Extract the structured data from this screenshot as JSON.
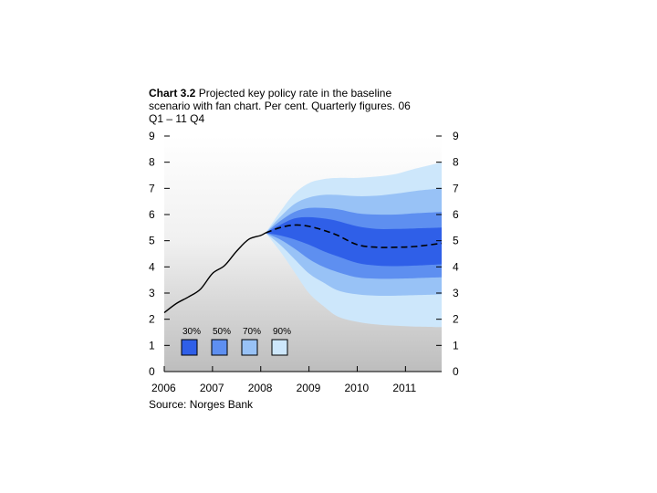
{
  "chart_data": {
    "type": "area",
    "title_bold": "Chart 3.2",
    "title": "Projected key policy rate in the baseline scenario with fan chart. Per cent. Quarterly figures. 06 Q1 – 11 Q4",
    "xlabel": "",
    "ylabel": "",
    "ylim": [
      0,
      9
    ],
    "xlim": [
      2006,
      2011.75
    ],
    "y_ticks": [
      0,
      1,
      2,
      3,
      4,
      5,
      6,
      7,
      8,
      9
    ],
    "y_tick_labels": [
      "0",
      "1",
      "2",
      "3",
      "4",
      "5",
      "6",
      "7",
      "8",
      "9"
    ],
    "x_tick_labels": [
      "2006",
      "2007",
      "2008",
      "2009",
      "2010",
      "2011"
    ],
    "x_tick_values": [
      2006,
      2007,
      2008,
      2009,
      2010,
      2011
    ],
    "grid": false,
    "legend_position": "bottom-left",
    "legend": [
      {
        "label": "30%",
        "color": "#2f5fe8"
      },
      {
        "label": "50%",
        "color": "#5e8ff0"
      },
      {
        "label": "70%",
        "color": "#98c2f6"
      },
      {
        "label": "90%",
        "color": "#cde7fb"
      }
    ],
    "historical": {
      "name": "Key policy rate",
      "x": [
        2006,
        2006.25,
        2006.5,
        2006.75,
        2007,
        2007.25,
        2007.5,
        2007.75,
        2008,
        2008.1
      ],
      "values": [
        2.25,
        2.6,
        2.85,
        3.15,
        3.75,
        4.05,
        4.6,
        5.05,
        5.2,
        5.3
      ]
    },
    "projection": {
      "name": "Baseline",
      "x": [
        2008.1,
        2008.4,
        2008.7,
        2009,
        2009.3,
        2009.6,
        2010,
        2010.4,
        2010.8,
        2011.2,
        2011.75
      ],
      "median": [
        5.3,
        5.5,
        5.6,
        5.55,
        5.4,
        5.2,
        4.85,
        4.75,
        4.75,
        4.78,
        4.9
      ],
      "bands": [
        {
          "level": "90%",
          "upper": [
            5.3,
            6.1,
            6.8,
            7.2,
            7.35,
            7.4,
            7.4,
            7.45,
            7.55,
            7.75,
            8.0
          ],
          "lower": [
            5.3,
            4.6,
            3.8,
            3.0,
            2.5,
            2.1,
            1.9,
            1.8,
            1.75,
            1.72,
            1.7
          ]
        },
        {
          "level": "70%",
          "upper": [
            5.3,
            5.9,
            6.4,
            6.65,
            6.75,
            6.75,
            6.7,
            6.72,
            6.8,
            6.9,
            7.0
          ],
          "lower": [
            5.3,
            4.85,
            4.3,
            3.75,
            3.4,
            3.1,
            2.95,
            2.9,
            2.9,
            2.92,
            2.95
          ]
        },
        {
          "level": "50%",
          "upper": [
            5.3,
            5.75,
            6.1,
            6.25,
            6.25,
            6.2,
            6.05,
            6.0,
            6.0,
            6.05,
            6.1
          ],
          "lower": [
            5.3,
            5.05,
            4.7,
            4.3,
            4.0,
            3.8,
            3.6,
            3.55,
            3.55,
            3.57,
            3.6
          ]
        },
        {
          "level": "30%",
          "upper": [
            5.3,
            5.6,
            5.85,
            5.9,
            5.85,
            5.75,
            5.55,
            5.45,
            5.45,
            5.47,
            5.5
          ],
          "lower": [
            5.3,
            5.2,
            5.05,
            4.85,
            4.6,
            4.4,
            4.15,
            4.05,
            4.03,
            4.05,
            4.1
          ]
        }
      ]
    },
    "source": "Source: Norges Bank"
  }
}
